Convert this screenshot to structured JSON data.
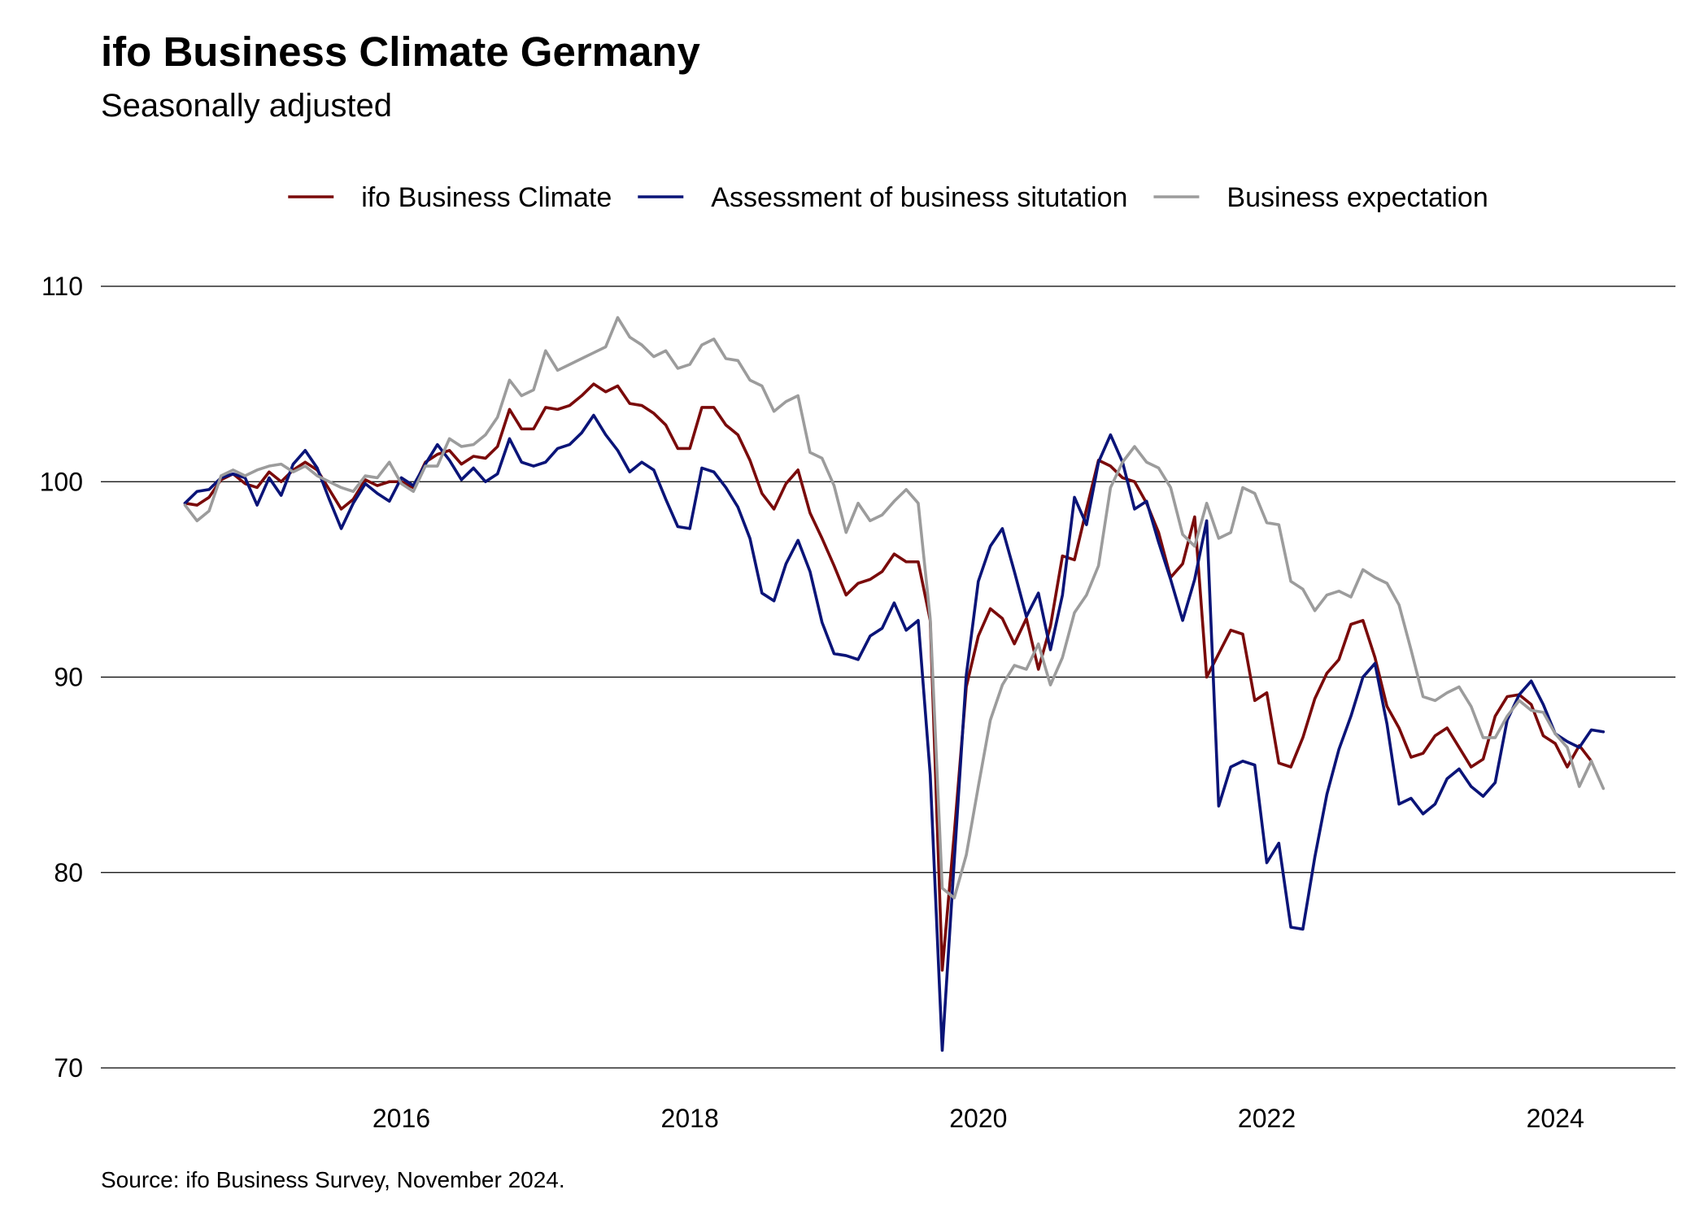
{
  "title": "ifo Business Climate Germany",
  "subtitle": "Seasonally adjusted",
  "source": "Source: ifo Business Survey, November 2024.",
  "chart_data": {
    "type": "line",
    "title": "ifo Business Climate Germany",
    "subtitle": "Seasonally adjusted",
    "x_axis": {
      "type": "date",
      "start": "2015-01",
      "end": "2024-11",
      "frequency": "monthly",
      "range": [
        "2014-06",
        "2025-05"
      ],
      "tick_labels": [
        "2016",
        "2018",
        "2020",
        "2022",
        "2024"
      ]
    },
    "y_axis": {
      "ylim": [
        70,
        110
      ],
      "tick_labels": [
        "70",
        "80",
        "90",
        "100",
        "110"
      ]
    },
    "grid": {
      "horizontal": true,
      "vertical": false
    },
    "legend": {
      "position": "top-center"
    },
    "series": [
      {
        "name": "ifo Business Climate",
        "color": "#7a0a0a",
        "values": [
          98.9,
          98.8,
          99.2,
          100.1,
          100.4,
          99.9,
          99.7,
          100.5,
          100.0,
          100.6,
          101.0,
          100.6,
          99.6,
          98.6,
          99.1,
          100.1,
          99.8,
          100.0,
          100.0,
          99.7,
          101.0,
          101.4,
          101.6,
          100.9,
          101.3,
          101.2,
          101.8,
          103.7,
          102.7,
          102.7,
          103.8,
          103.7,
          103.9,
          104.4,
          105.0,
          104.6,
          104.9,
          104.0,
          103.9,
          103.5,
          102.9,
          101.7,
          101.7,
          103.8,
          103.8,
          102.9,
          102.4,
          101.1,
          99.4,
          98.6,
          99.9,
          100.6,
          98.4,
          97.1,
          95.7,
          94.2,
          94.8,
          95.0,
          95.4,
          96.3,
          95.9,
          95.9,
          92.9,
          75.0,
          82.0,
          89.5,
          92.1,
          93.5,
          93.0,
          91.7,
          93.0,
          90.4,
          92.6,
          96.2,
          96.0,
          98.6,
          101.1,
          100.8,
          100.2,
          100.0,
          98.9,
          97.4,
          95.1,
          95.8,
          98.2,
          90.0,
          91.2,
          92.4,
          92.2,
          88.8,
          89.2,
          85.6,
          85.4,
          86.9,
          88.9,
          90.2,
          90.9,
          92.7,
          92.9,
          91.0,
          88.5,
          87.4,
          85.9,
          86.1,
          87.0,
          87.4,
          86.4,
          85.4,
          85.8,
          88.0,
          89.0,
          89.1,
          88.6,
          87.0,
          86.6,
          85.4,
          86.5,
          85.7
        ]
      },
      {
        "name": "Assessment of business situtation",
        "color": "#0a1478",
        "values": [
          98.9,
          99.5,
          99.6,
          100.2,
          100.4,
          100.2,
          98.8,
          100.2,
          99.3,
          100.9,
          101.6,
          100.7,
          99.1,
          97.6,
          98.9,
          99.9,
          99.4,
          99.0,
          100.2,
          99.8,
          100.9,
          101.9,
          101.1,
          100.1,
          100.7,
          100.0,
          100.4,
          102.2,
          101.0,
          100.8,
          101.0,
          101.7,
          101.9,
          102.5,
          103.4,
          102.4,
          101.6,
          100.5,
          101.0,
          100.6,
          99.1,
          97.7,
          97.6,
          100.7,
          100.5,
          99.7,
          98.7,
          97.1,
          94.3,
          93.9,
          95.8,
          97.0,
          95.4,
          92.8,
          91.2,
          91.1,
          90.9,
          92.1,
          92.5,
          93.8,
          92.4,
          92.9,
          85.0,
          70.9,
          80.6,
          90.1,
          94.9,
          96.7,
          97.6,
          95.4,
          93.1,
          94.3,
          91.4,
          94.2,
          99.2,
          97.8,
          101.0,
          102.4,
          101.0,
          98.6,
          99.0,
          96.9,
          95.0,
          92.9,
          95.0,
          98.0,
          83.4,
          85.4,
          85.7,
          85.5,
          80.5,
          81.5,
          77.2,
          77.1,
          80.8,
          84.0,
          86.3,
          88.0,
          90.0,
          90.7,
          87.6,
          83.5,
          83.8,
          83.0,
          83.5,
          84.8,
          85.3,
          84.4,
          83.9,
          84.6,
          87.8,
          89.1,
          89.8,
          88.6,
          87.1,
          86.7,
          86.4,
          87.3,
          87.2
        ]
      },
      {
        "name": "Business expectation",
        "color": "#9c9c9c",
        "values": [
          98.8,
          98.0,
          98.5,
          100.3,
          100.6,
          100.3,
          100.6,
          100.8,
          100.9,
          100.5,
          100.8,
          100.3,
          100.0,
          99.7,
          99.5,
          100.3,
          100.2,
          101.0,
          99.9,
          99.5,
          100.8,
          100.8,
          102.2,
          101.8,
          101.9,
          102.4,
          103.3,
          105.2,
          104.4,
          104.7,
          106.7,
          105.7,
          106.0,
          106.3,
          106.6,
          106.9,
          108.4,
          107.4,
          107.0,
          106.4,
          106.7,
          105.8,
          106.0,
          107.0,
          107.3,
          106.3,
          106.2,
          105.2,
          104.9,
          103.6,
          104.1,
          104.4,
          101.5,
          101.2,
          99.8,
          97.4,
          98.9,
          98.0,
          98.3,
          99.0,
          99.6,
          98.9,
          93.0,
          79.2,
          78.7,
          80.9,
          84.4,
          87.8,
          89.6,
          90.6,
          90.4,
          91.7,
          89.6,
          91.0,
          93.3,
          94.2,
          95.7,
          99.7,
          101.0,
          101.8,
          101.0,
          100.7,
          99.7,
          97.3,
          96.7,
          98.9,
          97.1,
          97.4,
          99.7,
          99.4,
          97.9,
          97.8,
          94.9,
          94.5,
          93.4,
          94.2,
          94.4,
          94.1,
          95.5,
          95.1,
          94.8,
          93.7,
          91.4,
          89.0,
          88.8,
          89.2,
          89.5,
          88.5,
          86.9,
          86.9,
          88.0,
          88.8,
          88.3,
          88.2,
          87.1,
          86.4,
          84.4,
          85.7,
          84.3
        ]
      }
    ]
  }
}
